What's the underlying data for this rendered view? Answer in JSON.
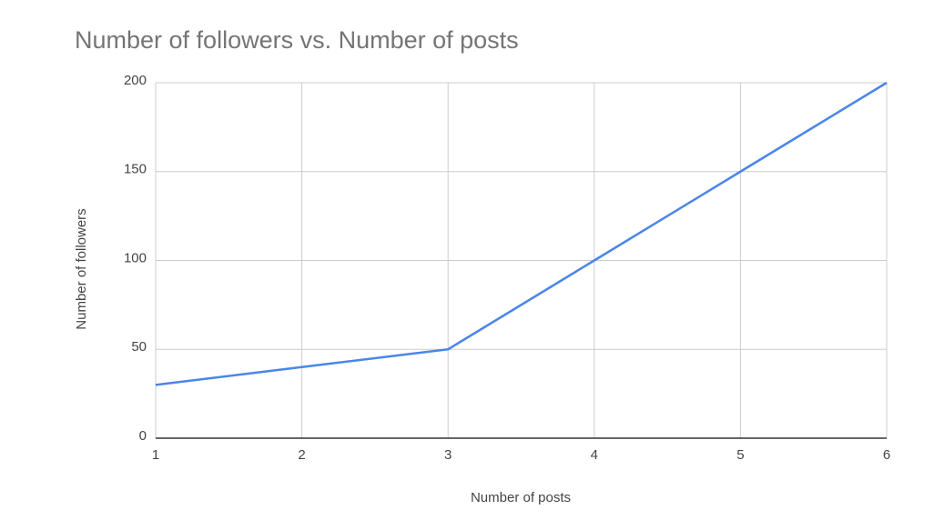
{
  "chart_data": {
    "type": "line",
    "title": "Number of followers vs. Number of posts",
    "x_label": "Number of posts",
    "y_label": "Number of followers",
    "x": [
      1,
      2,
      3,
      4,
      5,
      6
    ],
    "values": [
      30,
      40,
      50,
      100,
      150,
      200
    ],
    "color": "#4a86e8",
    "xlim": [
      1,
      6
    ],
    "xticks": [
      1,
      2,
      3,
      4,
      5,
      6
    ],
    "ylim": [
      0,
      200
    ],
    "yticks": [
      0,
      50,
      100,
      150,
      200
    ],
    "grid": true
  }
}
